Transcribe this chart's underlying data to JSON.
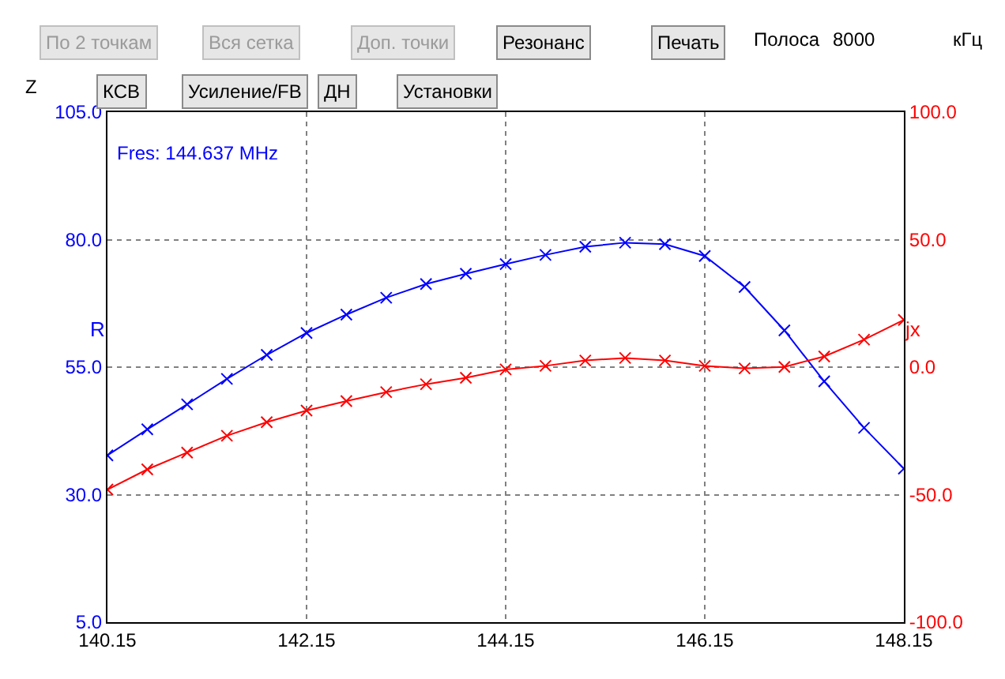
{
  "chart_data": {
    "type": "line",
    "xlabel": null,
    "ylabel": "R",
    "y2label": "jx",
    "x": [
      140.15,
      140.55,
      140.95,
      141.35,
      141.75,
      142.15,
      142.55,
      142.95,
      143.35,
      143.75,
      144.15,
      144.55,
      144.95,
      145.35,
      145.75,
      146.15,
      146.55,
      146.95,
      147.35,
      147.75,
      148.15
    ],
    "series": [
      {
        "color": "#0000ff",
        "values": [
          37.7,
          42.8,
          47.7,
          52.7,
          57.4,
          61.7,
          65.3,
          68.6,
          71.3,
          73.3,
          75.2,
          77.0,
          78.6,
          79.4,
          79.1,
          76.8,
          70.7,
          62.2,
          52.2,
          43.1,
          35.1
        ]
      },
      {
        "color": "#ff0000",
        "axis": "y2",
        "values": [
          -48.0,
          -40.1,
          -33.5,
          -26.9,
          -21.6,
          -17.0,
          -13.3,
          -9.8,
          -6.7,
          -4.2,
          -0.9,
          0.5,
          2.6,
          3.6,
          2.6,
          0.5,
          -0.5,
          0.1,
          4.2,
          10.8,
          18.5
        ]
      }
    ],
    "xlim": [
      140.15,
      148.15
    ],
    "xticks": [
      140.15,
      142.15,
      144.15,
      146.15,
      148.15
    ],
    "ylim": [
      5,
      105
    ],
    "yticks": [
      {
        "value": 5,
        "label": "5.0"
      },
      {
        "value": 30,
        "label": "30.0"
      },
      {
        "value": 55,
        "label": "55.0"
      },
      {
        "value": 80,
        "label": "80.0"
      },
      {
        "value": 105,
        "label": "105.0"
      }
    ],
    "y2lim": [
      -100,
      100
    ],
    "y2ticks": [
      {
        "value": -100,
        "label": "-100.0"
      },
      {
        "value": -50,
        "label": "-50.0"
      },
      {
        "value": 0,
        "label": "0.0"
      },
      {
        "value": 50,
        "label": "50.0"
      },
      {
        "value": 100,
        "label": "100.0"
      }
    ],
    "grid": true,
    "marker": "cross",
    "line_style": "solid",
    "annotations": [
      "По 2 точкам",
      "Вся сетка",
      "Доп. точки",
      "Резонанс",
      "Печать",
      "Полоса",
      "8000",
      "кГц",
      "Z",
      "КСВ",
      "Усиление/FB",
      "ДН",
      "Установки",
      "Fres: 144.637 MHz"
    ]
  }
}
